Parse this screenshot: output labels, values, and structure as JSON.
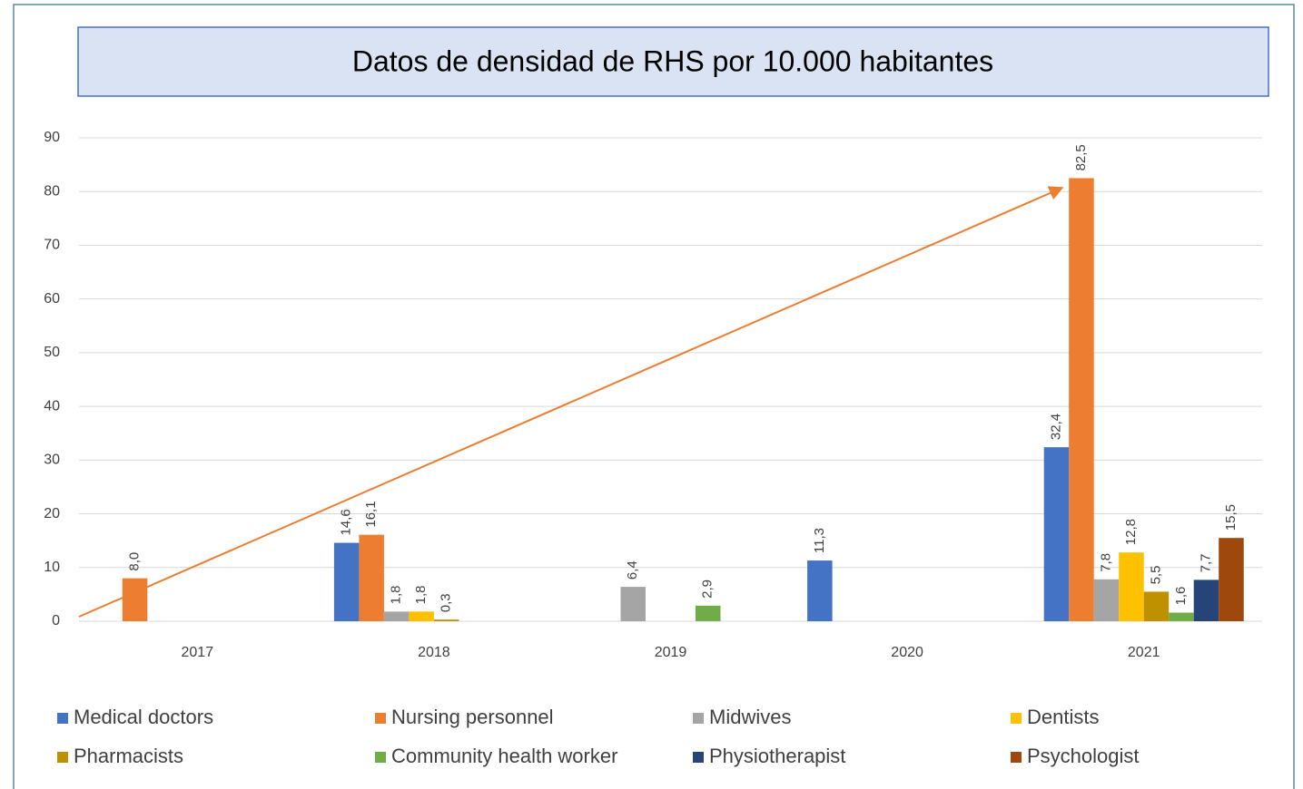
{
  "chart_data": {
    "type": "bar",
    "title": "Datos de densidad de RHS por 10.000 habitantes",
    "categories": [
      "2017",
      "2018",
      "2019",
      "2020",
      "2021"
    ],
    "series": [
      {
        "name": "Medical doctors",
        "color": "#4472c4",
        "values": [
          null,
          14.6,
          null,
          11.3,
          32.4
        ],
        "value_labels": [
          null,
          "14,6",
          null,
          "11,3",
          "32,4"
        ]
      },
      {
        "name": "Nursing personnel",
        "color": "#ed7d31",
        "values": [
          8.0,
          16.1,
          null,
          null,
          82.5
        ],
        "value_labels": [
          "8,0",
          "16,1",
          null,
          null,
          "82,5"
        ]
      },
      {
        "name": "Midwives",
        "color": "#a5a5a5",
        "values": [
          null,
          1.8,
          6.4,
          null,
          7.8
        ],
        "value_labels": [
          null,
          "1,8",
          "6,4",
          null,
          "7,8"
        ]
      },
      {
        "name": "Dentists",
        "color": "#ffc000",
        "values": [
          null,
          1.8,
          null,
          null,
          12.8
        ],
        "value_labels": [
          null,
          "1,8",
          null,
          null,
          "12,8"
        ]
      },
      {
        "name": "Pharmacists",
        "color": "#bf9000",
        "values": [
          null,
          0.3,
          null,
          null,
          5.5
        ],
        "value_labels": [
          null,
          "0,3",
          null,
          null,
          "5,5"
        ]
      },
      {
        "name": "Community health worker",
        "color": "#70ad47",
        "values": [
          null,
          null,
          2.9,
          null,
          1.6
        ],
        "value_labels": [
          null,
          null,
          "2,9",
          null,
          "1,6"
        ]
      },
      {
        "name": "Physiotherapist",
        "color": "#264478",
        "values": [
          null,
          null,
          null,
          null,
          7.7
        ],
        "value_labels": [
          null,
          null,
          null,
          null,
          "7,7"
        ]
      },
      {
        "name": "Psychologist",
        "color": "#9e480e",
        "values": [
          null,
          null,
          null,
          null,
          15.5
        ],
        "value_labels": [
          null,
          null,
          null,
          null,
          "15,5"
        ]
      }
    ],
    "ylim": [
      0,
      90
    ],
    "yticks": [
      0,
      10,
      20,
      30,
      40,
      50,
      60,
      70,
      80,
      90
    ],
    "grid": true
  }
}
